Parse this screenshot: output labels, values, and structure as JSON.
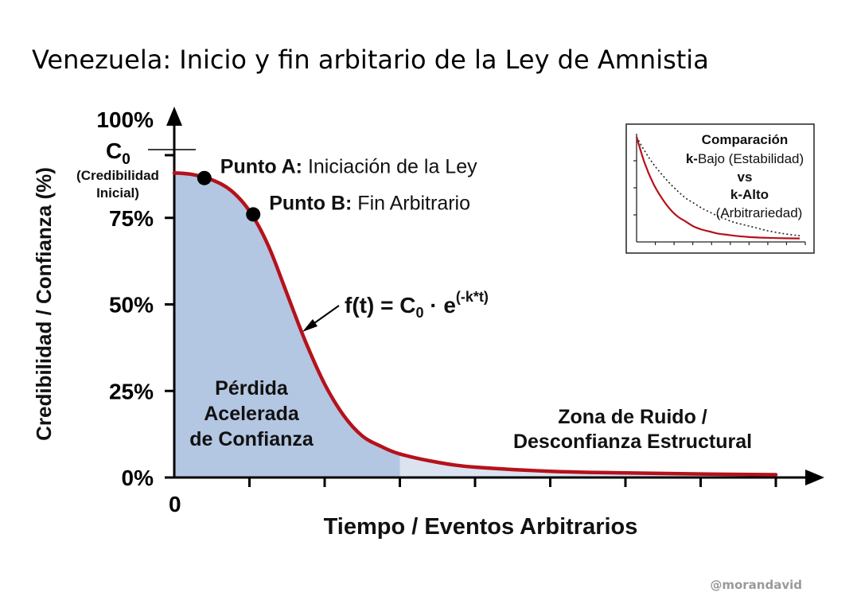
{
  "title": "Venezuela: Inicio y fin arbitario de la Ley de Amnistia",
  "watermark": "@morandavid",
  "chart_data": {
    "type": "line",
    "title": "Venezuela: Inicio y fin arbitario de la Ley de Amnistia",
    "xlabel": "Tiempo / Eventos Arbitrarios",
    "ylabel": "Credibilidad / Confianza (%)",
    "x_origin_label": "0",
    "yticks": [
      "0%",
      "25%",
      "50%",
      "75%",
      "100%"
    ],
    "ytick_values": [
      0,
      25,
      50,
      75,
      100
    ],
    "ylim": [
      0,
      100
    ],
    "xlim": [
      0,
      8
    ],
    "grid": false,
    "series": [
      {
        "color": "#b5121b",
        "x": [
          0,
          0.25,
          0.5,
          0.75,
          1.0,
          1.25,
          1.5,
          1.75,
          2.0,
          2.25,
          2.5,
          2.75,
          3.0,
          3.5,
          4.0,
          5.0,
          6.0,
          7.0,
          8.0
        ],
        "y": [
          88,
          87.5,
          86,
          83,
          77,
          67,
          53,
          39,
          27,
          18,
          12,
          9,
          6.8,
          4.4,
          3.0,
          1.8,
          1.3,
          1.0,
          0.8
        ]
      }
    ],
    "c0_label": "C",
    "c0_subscript": "0",
    "c0_note_line1": "(Credibilidad",
    "c0_note_line2": "Inicial)",
    "points": [
      {
        "bold": "Punto A:",
        "text": " Iniciación de la Ley",
        "x": 0.4,
        "y": 86.5
      },
      {
        "bold": "Punto B:",
        "text": " Fin Arbitrario",
        "x": 1.05,
        "y": 76
      }
    ],
    "formula": {
      "lhs": "f(t) = C",
      "sub": "0",
      "mid": " · e",
      "sup": "(-k*t)"
    },
    "shaded_end_x": 3.0,
    "shade_color": "#b3c6e2",
    "shade_light_color": "#dbe3f0",
    "region_left": [
      "Pérdida",
      "Acelerada",
      "de Confianza"
    ],
    "region_right": [
      "Zona de Ruido /",
      "Desconfianza Estructural"
    ],
    "inset": {
      "line1": "Comparación",
      "line2_bold": "k-",
      "line2": "Bajo (Estabilidad)",
      "line3": "vs",
      "line4": "k-Alto",
      "line5": "(Arbitrariedad)",
      "series": [
        {
          "dashed": false,
          "color": "#b5121b",
          "x": [
            0,
            0.5,
            1,
            1.5,
            2,
            2.5,
            3,
            3.5,
            4,
            4.5,
            5,
            5.5,
            6,
            6.5,
            7,
            7.5,
            8,
            9,
            10
          ],
          "y": [
            100,
            74,
            55,
            41,
            30,
            22,
            17,
            12,
            9,
            7,
            5,
            4,
            3,
            2.2,
            1.6,
            1.2,
            0.9,
            0.5,
            0.3
          ]
        },
        {
          "dashed": true,
          "color": "#222222",
          "x": [
            0,
            0.5,
            1,
            1.5,
            2,
            2.5,
            3,
            3.5,
            4,
            4.5,
            5,
            5.5,
            6,
            6.5,
            7,
            7.5,
            8,
            9,
            10
          ],
          "y": [
            100,
            86,
            74,
            64,
            55,
            47,
            40,
            35,
            30,
            26,
            22,
            19,
            16,
            14,
            12,
            10,
            8,
            5,
            3
          ]
        }
      ]
    }
  }
}
